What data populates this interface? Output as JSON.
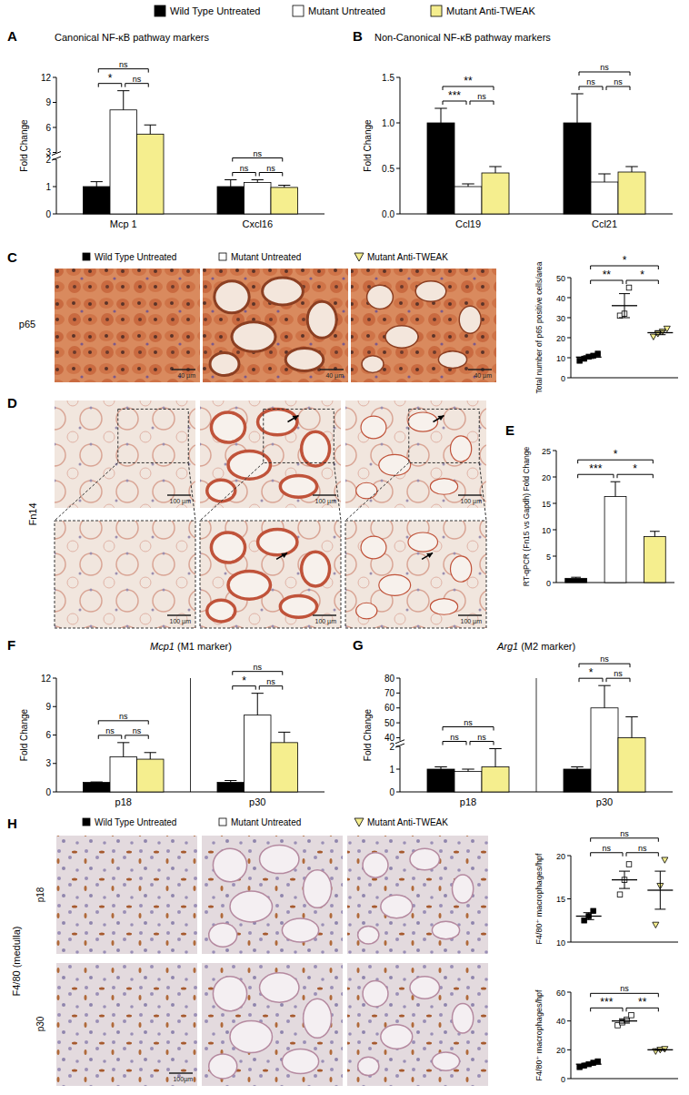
{
  "chart_data": [
    {
      "type": "bar",
      "label": "A",
      "title": "Canonical NF-κB pathway markers",
      "y_label": "Fold Change",
      "categories": [
        "Mcp 1",
        "Cxcl16"
      ],
      "ylim": [
        0,
        12
      ],
      "ybreak": [
        2,
        3
      ],
      "yticks": [
        0,
        1,
        2,
        3,
        6,
        9,
        12
      ],
      "series": [
        {
          "name": "Wild Type Untreated",
          "color": "#000000",
          "values": [
            1.0,
            1.0
          ],
          "errors": [
            0.18,
            0.25
          ]
        },
        {
          "name": "Mutant Untreated",
          "color": "#ffffff",
          "values": [
            8.1,
            1.15
          ],
          "errors": [
            2.3,
            0.1
          ]
        },
        {
          "name": "Mutant Anti-TWEAK",
          "color": "#f5ee8e",
          "values": [
            5.2,
            0.97
          ],
          "errors": [
            1.1,
            0.08
          ]
        }
      ],
      "annotations": [
        {
          "category": 0,
          "from": 0,
          "to": 1,
          "text": "*"
        },
        {
          "category": 0,
          "from": 1,
          "to": 2,
          "text": "ns"
        },
        {
          "category": 0,
          "from": 0,
          "to": 2,
          "text": "ns"
        },
        {
          "category": 1,
          "from": 0,
          "to": 1,
          "text": "ns"
        },
        {
          "category": 1,
          "from": 1,
          "to": 2,
          "text": "ns"
        },
        {
          "category": 1,
          "from": 0,
          "to": 2,
          "text": "ns"
        }
      ]
    },
    {
      "type": "bar",
      "label": "B",
      "title": "Non-Canonical NF-κB pathway markers",
      "y_label": "Fold Change",
      "categories": [
        "Ccl19",
        "Ccl21"
      ],
      "ylim": [
        0,
        1.5
      ],
      "yticks": [
        {
          "value": 0,
          "label": "0.0"
        },
        {
          "value": 0.5,
          "label": "0.5"
        },
        {
          "value": 1,
          "label": "1.0"
        },
        {
          "value": 1.5,
          "label": "1.5"
        }
      ],
      "series": [
        {
          "color": "#000000",
          "values": [
            1.0,
            1.0
          ],
          "errors": [
            0.16,
            0.32
          ]
        },
        {
          "color": "#ffffff",
          "values": [
            0.3,
            0.35
          ],
          "errors": [
            0.03,
            0.09
          ]
        },
        {
          "color": "#f5ee8e",
          "values": [
            0.45,
            0.46
          ],
          "errors": [
            0.07,
            0.06
          ]
        }
      ],
      "annotations": [
        {
          "category": 0,
          "from": 0,
          "to": 1,
          "text": "***"
        },
        {
          "category": 0,
          "from": 1,
          "to": 2,
          "text": "ns"
        },
        {
          "category": 0,
          "from": 0,
          "to": 2,
          "text": "**"
        },
        {
          "category": 1,
          "from": 0,
          "to": 1,
          "text": "ns"
        },
        {
          "category": 1,
          "from": 1,
          "to": 2,
          "text": "ns"
        },
        {
          "category": 1,
          "from": 0,
          "to": 2,
          "text": "ns"
        }
      ]
    },
    {
      "type": "dot",
      "y_label": "Total number of p65 positive cells/area",
      "ylim": [
        0,
        50
      ],
      "yticks": [
        0,
        10,
        20,
        30,
        40,
        50
      ],
      "series": [
        {
          "name": "Wild Type Untreated",
          "color": "#000000",
          "marker": "square",
          "values": [
            8.5,
            9.5,
            10.5,
            11,
            12
          ],
          "mean": 10.3,
          "error": 0.7
        },
        {
          "name": "Mutant Untreated",
          "color": "#ffffff",
          "marker": "square",
          "values": [
            31,
            32,
            45
          ],
          "mean": 36,
          "error": 6
        },
        {
          "name": "Mutant Anti-TWEAK",
          "color": "#f5ee8e",
          "marker": "triangle-down",
          "values": [
            20.5,
            22,
            23,
            24.5
          ],
          "mean": 22.5,
          "error": 1
        }
      ],
      "annotations": [
        {
          "from": 0,
          "to": 1,
          "text": "**"
        },
        {
          "from": 1,
          "to": 2,
          "text": "*"
        },
        {
          "from": 0,
          "to": 2,
          "text": "*"
        }
      ]
    },
    {
      "type": "bar",
      "label": "E",
      "y_label": "RT-qPCR (Fn15 vs Gapdh) Fold Change",
      "categories": [
        null,
        null,
        null
      ],
      "values": [
        0.8,
        16.3,
        8.7
      ],
      "errors": [
        0.2,
        2.8,
        1.0
      ],
      "colors": [
        "#000000",
        "#ffffff",
        "#f5ee8e"
      ],
      "ylim": [
        0,
        25
      ],
      "yticks": [
        0,
        5,
        10,
        15,
        20,
        25
      ],
      "annotations": [
        {
          "from": 0,
          "to": 1,
          "text": "***"
        },
        {
          "from": 1,
          "to": 2,
          "text": "*"
        },
        {
          "from": 0,
          "to": 2,
          "text": "*"
        }
      ]
    },
    {
      "type": "bar",
      "label": "F",
      "title": "Mcp1 (M1 marker)",
      "y_label": "Fold Change",
      "categories": [
        "p18",
        "p30"
      ],
      "ylim": [
        0,
        12
      ],
      "yticks": [
        0,
        3,
        6,
        9,
        12
      ],
      "series": [
        {
          "color": "#000000",
          "values": [
            1.0,
            1.0
          ],
          "errors": [
            0.05,
            0.2
          ]
        },
        {
          "color": "#ffffff",
          "values": [
            3.7,
            8.1
          ],
          "errors": [
            1.5,
            2.3
          ]
        },
        {
          "color": "#f5ee8e",
          "values": [
            3.45,
            5.2
          ],
          "errors": [
            0.7,
            1.1
          ]
        }
      ],
      "annotations": [
        {
          "category": 0,
          "from": 0,
          "to": 1,
          "text": "ns"
        },
        {
          "category": 0,
          "from": 1,
          "to": 2,
          "text": "ns"
        },
        {
          "category": 0,
          "from": 0,
          "to": 2,
          "text": "ns"
        },
        {
          "category": 1,
          "from": 0,
          "to": 1,
          "text": "*"
        },
        {
          "category": 1,
          "from": 1,
          "to": 2,
          "text": "ns"
        },
        {
          "category": 1,
          "from": 0,
          "to": 2,
          "text": "ns"
        }
      ]
    },
    {
      "type": "bar",
      "label": "G",
      "title": "Arg1 (M2 marker)",
      "y_label": "Fold Change",
      "categories": [
        "p18",
        "p30"
      ],
      "ylim": [
        0,
        80
      ],
      "ybreak": [
        2,
        38
      ],
      "yticks": [
        0,
        1,
        2,
        40,
        50,
        60,
        70,
        80
      ],
      "series": [
        {
          "color": "#000000",
          "values": [
            1.0,
            1.0
          ],
          "errors": [
            0.1,
            0.1
          ]
        },
        {
          "color": "#ffffff",
          "values": [
            0.9,
            60
          ],
          "errors": [
            0.1,
            15
          ]
        },
        {
          "color": "#f5ee8e",
          "values": [
            1.1,
            40
          ],
          "errors": [
            0.8,
            14
          ]
        }
      ],
      "annotations": [
        {
          "category": 0,
          "from": 0,
          "to": 1,
          "text": "ns"
        },
        {
          "category": 0,
          "from": 1,
          "to": 2,
          "text": "ns"
        },
        {
          "category": 0,
          "from": 0,
          "to": 2,
          "text": "ns"
        },
        {
          "category": 1,
          "from": 0,
          "to": 1,
          "text": "*"
        },
        {
          "category": 1,
          "from": 1,
          "to": 2,
          "text": "ns"
        },
        {
          "category": 1,
          "from": 0,
          "to": 2,
          "text": "ns"
        }
      ]
    },
    {
      "type": "dot",
      "y_label": "F4/80⁺ macrophages/hpf",
      "ylim": [
        10,
        20
      ],
      "yticks": [
        10,
        15,
        20
      ],
      "series": [
        {
          "name": "Wild Type Untreated",
          "color": "#000000",
          "marker": "square",
          "values": [
            12.5,
            13,
            13.6
          ],
          "mean": 13,
          "error": 0.4
        },
        {
          "name": "Mutant Untreated",
          "color": "#ffffff",
          "marker": "square",
          "values": [
            15.5,
            17.2,
            19
          ],
          "mean": 17.2,
          "error": 1.0
        },
        {
          "name": "Mutant Anti-TWEAK",
          "color": "#f5ee8e",
          "marker": "triangle-down",
          "values": [
            12,
            16.5,
            19.5
          ],
          "mean": 16,
          "error": 2.2
        }
      ],
      "annotations": [
        {
          "from": 0,
          "to": 1,
          "text": "ns"
        },
        {
          "from": 1,
          "to": 2,
          "text": "ns"
        },
        {
          "from": 0,
          "to": 2,
          "text": "ns"
        }
      ]
    },
    {
      "type": "dot",
      "y_label": "F4/80⁺ macrophages/hpf",
      "ylim": [
        0,
        60
      ],
      "yticks": [
        0,
        20,
        40,
        60
      ],
      "series": [
        {
          "color": "#000000",
          "marker": "square",
          "values": [
            8,
            9,
            10,
            11,
            12
          ],
          "mean": 10,
          "error": 0.7
        },
        {
          "color": "#ffffff",
          "marker": "square",
          "values": [
            37,
            39,
            41,
            44
          ],
          "mean": 40,
          "error": 1.5
        },
        {
          "color": "#f5ee8e",
          "marker": "triangle-down",
          "values": [
            19,
            20,
            20.5
          ],
          "mean": 20,
          "error": 0.4
        }
      ],
      "annotations": [
        {
          "from": 0,
          "to": 1,
          "text": "***"
        },
        {
          "from": 1,
          "to": 2,
          "text": "**"
        },
        {
          "from": 0,
          "to": 2,
          "text": "ns"
        }
      ]
    }
  ],
  "images": [
    {
      "label": "C",
      "stain": "p65",
      "scale_bars": [
        "40 µm",
        "40 µm",
        "40 µm"
      ]
    },
    {
      "label": "D",
      "stain": "Fn14",
      "scale_bars": [
        "100 µm",
        "100 µm",
        "100 µm",
        "100 µm",
        "100 µm",
        "100 µm"
      ]
    },
    {
      "label": "H",
      "stain": "F4/80 (medulla)",
      "rows": [
        "p18",
        "p30"
      ],
      "scale_bars": [
        "100µm"
      ]
    }
  ]
}
